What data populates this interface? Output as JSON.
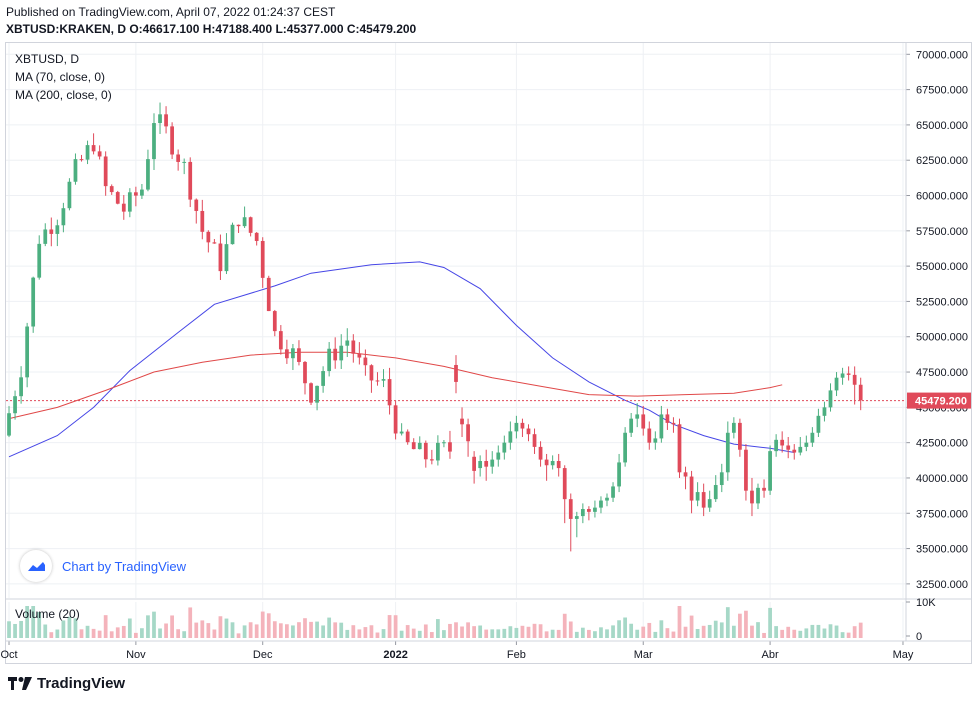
{
  "header": {
    "published": "Published on TradingView.com, April 07, 2022 01:24:37 CEST",
    "symbol": "XBTUSD:KRAKEN, D",
    "ohlc": "O:46617.100 H:47188.400 L:45377.000 C:45479.200"
  },
  "legend": {
    "title": "XBTUSD, D",
    "ma70": "MA (70, close, 0)",
    "ma200": "MA (200, close, 0)",
    "volume": "Volume (20)"
  },
  "watermark": "Chart by TradingView",
  "footer": "TradingView",
  "colors": {
    "up": "#26a69a",
    "up_candle": "#4caf80",
    "down": "#e04a5a",
    "ma70": "#4646e6",
    "ma200": "#e04848",
    "grid": "#eef0f4",
    "price_line": "#e04a5a"
  },
  "chart_data": {
    "type": "candlestick",
    "interval": "D",
    "y_axis": {
      "min": 31500,
      "max": 70800,
      "ticks": [
        "70000.000",
        "67500.000",
        "65000.000",
        "62500.000",
        "60000.000",
        "57500.000",
        "55000.000",
        "52500.000",
        "50000.000",
        "47500.000",
        "45000.000",
        "42500.000",
        "40000.000",
        "37500.000",
        "35000.000",
        "32500.000"
      ],
      "last_price_label": "45479.200",
      "last_price": 45479.2
    },
    "x_axis": {
      "labels": [
        "Oct",
        "Nov",
        "Dec",
        "2022",
        "Feb",
        "Mar",
        "Abr",
        "May"
      ],
      "label_bar_index": [
        0,
        21,
        42,
        64,
        84,
        105,
        126,
        148
      ],
      "total_slots": 149
    },
    "volume_axis": [
      "10K",
      "0"
    ],
    "ma70": [
      [
        0,
        41500
      ],
      [
        8,
        43000
      ],
      [
        14,
        45000
      ],
      [
        20,
        47600
      ],
      [
        28,
        50300
      ],
      [
        34,
        52300
      ],
      [
        44,
        53600
      ],
      [
        50,
        54500
      ],
      [
        60,
        55100
      ],
      [
        68,
        55300
      ],
      [
        72,
        54900
      ],
      [
        78,
        53400
      ],
      [
        84,
        50800
      ],
      [
        90,
        48500
      ],
      [
        96,
        46800
      ],
      [
        102,
        45500
      ],
      [
        106,
        44800
      ],
      [
        110,
        43800
      ],
      [
        115,
        43000
      ],
      [
        120,
        42400
      ],
      [
        126,
        42100
      ],
      [
        130,
        41800
      ]
    ],
    "ma200": [
      [
        0,
        44200
      ],
      [
        8,
        45000
      ],
      [
        16,
        46200
      ],
      [
        24,
        47500
      ],
      [
        32,
        48200
      ],
      [
        40,
        48700
      ],
      [
        48,
        48900
      ],
      [
        56,
        48900
      ],
      [
        64,
        48500
      ],
      [
        72,
        47900
      ],
      [
        80,
        47100
      ],
      [
        88,
        46500
      ],
      [
        96,
        45900
      ],
      [
        104,
        45800
      ],
      [
        112,
        45900
      ],
      [
        120,
        46000
      ],
      [
        126,
        46400
      ],
      [
        128,
        46600
      ]
    ],
    "candles": [
      [
        48000,
        46800,
        46000,
        48700
      ],
      [
        44200,
        43800,
        42900,
        45000
      ],
      [
        43800,
        42600,
        41500,
        44200
      ],
      [
        41500,
        40500,
        39600,
        41900
      ],
      [
        40700,
        41200,
        40100,
        41600
      ],
      [
        41200,
        40800,
        39800,
        42000
      ],
      [
        40800,
        41300,
        40300,
        41900
      ],
      [
        41300,
        41800,
        40800,
        42300
      ],
      [
        41800,
        42500,
        41300,
        43000
      ],
      [
        42500,
        43300,
        42000,
        44000
      ],
      [
        43300,
        43900,
        42800,
        44400
      ],
      [
        43900,
        43500,
        42900,
        44200
      ],
      [
        43500,
        43100,
        42600,
        43800
      ],
      [
        43100,
        42200,
        41700,
        43500
      ],
      [
        42200,
        41300,
        40800,
        42600
      ],
      [
        41300,
        40900,
        39800,
        41700
      ],
      [
        40900,
        41200,
        40600,
        41600
      ],
      [
        41200,
        40700,
        40100,
        41700
      ],
      [
        40700,
        38500,
        36800,
        40900
      ],
      [
        38500,
        37100,
        34800,
        38900
      ],
      [
        37100,
        37300,
        35800,
        37600
      ],
      [
        37300,
        37800,
        36800,
        38200
      ],
      [
        37800,
        37600,
        37000,
        38000
      ],
      [
        37600,
        37900,
        37200,
        38400
      ],
      [
        37900,
        38400,
        37500,
        38700
      ],
      [
        38400,
        38600,
        38000,
        38900
      ],
      [
        38600,
        39400,
        38300,
        39700
      ],
      [
        39400,
        41100,
        39000,
        41700
      ],
      [
        41100,
        43200,
        40800,
        43600
      ],
      [
        43200,
        44200,
        42900,
        44600
      ],
      [
        44200,
        44500,
        43600,
        45300
      ],
      [
        44500,
        43500,
        43000,
        45100
      ],
      [
        43500,
        42500,
        42000,
        44000
      ],
      [
        42500,
        42800,
        42000,
        43300
      ],
      [
        42800,
        44500,
        42500,
        45100
      ],
      [
        44500,
        43900,
        43400,
        44900
      ],
      [
        43900,
        43800,
        43200,
        44300
      ],
      [
        43800,
        40400,
        40000,
        44200
      ],
      [
        40400,
        40100,
        39200,
        40800
      ],
      [
        40100,
        38400,
        37500,
        40500
      ],
      [
        38400,
        39000,
        38000,
        39700
      ],
      [
        39000,
        37900,
        37300,
        39600
      ],
      [
        37900,
        38500,
        37600,
        39100
      ],
      [
        38500,
        39500,
        38300,
        40200
      ],
      [
        39500,
        40400,
        39000,
        41000
      ],
      [
        40400,
        43200,
        39800,
        44000
      ],
      [
        43200,
        43900,
        42800,
        44300
      ],
      [
        43900,
        42000,
        41500,
        44200
      ],
      [
        42000,
        39100,
        38400,
        42400
      ],
      [
        39100,
        38200,
        37300,
        40000
      ],
      [
        38200,
        39300,
        37800,
        39600
      ],
      [
        39300,
        39100,
        38600,
        39900
      ],
      [
        39100,
        41900,
        38800,
        42300
      ],
      [
        41900,
        42700,
        41500,
        43100
      ],
      [
        42700,
        42300,
        41800,
        43300
      ],
      [
        42300,
        42000,
        41400,
        42900
      ],
      [
        42000,
        41800,
        41300,
        42400
      ],
      [
        41800,
        42200,
        41600,
        42900
      ],
      [
        42200,
        42500,
        41900,
        43000
      ],
      [
        42500,
        43200,
        42200,
        43600
      ],
      [
        43200,
        44400,
        42900,
        44900
      ],
      [
        44400,
        45000,
        44000,
        45400
      ],
      [
        45000,
        46200,
        44700,
        46700
      ],
      [
        46200,
        47100,
        45800,
        47500
      ],
      [
        47100,
        47400,
        46600,
        47800
      ],
      [
        47400,
        47300,
        46900,
        47900
      ],
      [
        47300,
        46600,
        45200,
        47900
      ],
      [
        46600,
        45500,
        44800,
        47100
      ]
    ]
  }
}
